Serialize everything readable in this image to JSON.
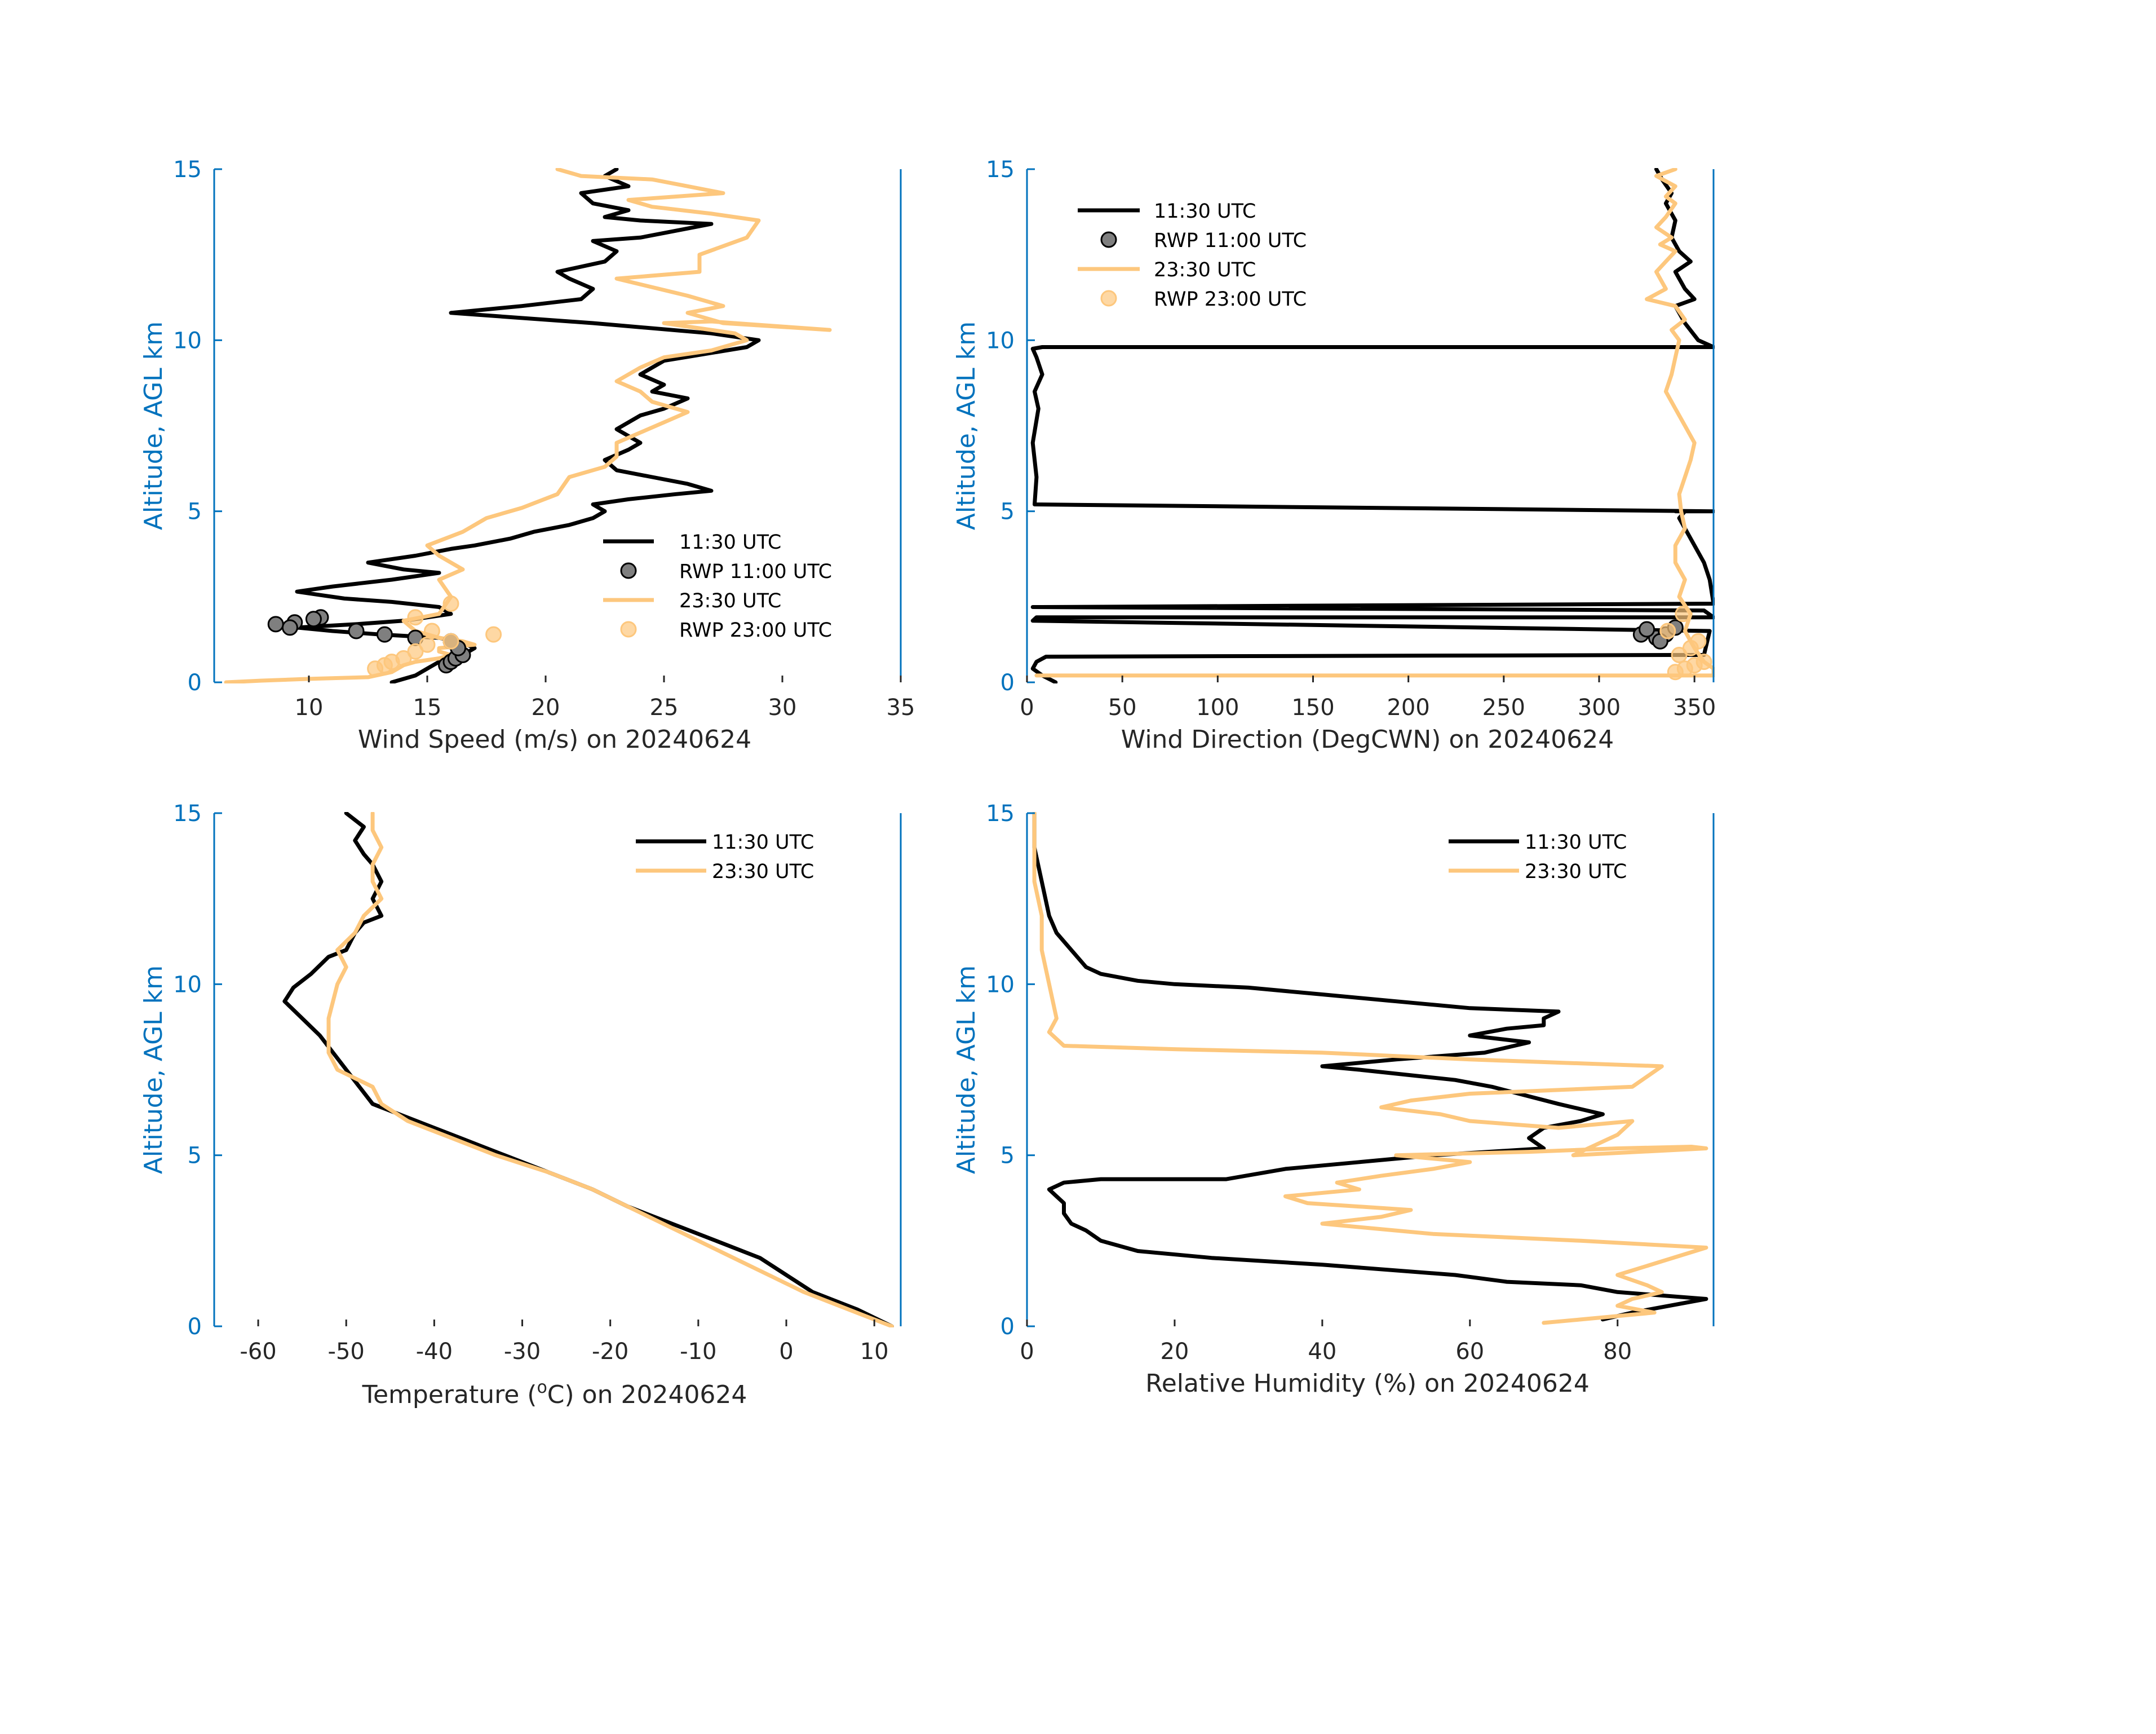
{
  "colors": {
    "axis": "#0072BD",
    "black": "#000000",
    "orange": "#FDC77D",
    "label": "#262626",
    "marker_gray": "#7F7F7F"
  },
  "chart_data": [
    {
      "type": "line",
      "id": "wind-speed",
      "xlabel": "Wind Speed (m/s) on 20240624",
      "ylabel": "Altitude, AGL km",
      "xlim": [
        6,
        35
      ],
      "ylim": [
        0,
        15
      ],
      "xticks": [
        10,
        15,
        20,
        25,
        30,
        35
      ],
      "yticks": [
        0,
        5,
        10,
        15
      ],
      "legend": [
        "11:30 UTC",
        "RWP 11:00 UTC",
        "23:30 UTC",
        "RWP 23:00 UTC"
      ],
      "series": [
        {
          "name": "11:30 UTC",
          "kind": "line",
          "color": "black",
          "x": [
            13.5,
            14.5,
            15.0,
            15.5,
            16.5,
            17.0,
            16.5,
            15.5,
            13.0,
            11.0,
            9.5,
            12.0,
            14.0,
            16.0,
            15.5,
            13.5,
            11.5,
            10.5,
            9.5,
            11.0,
            13.5,
            15.5,
            14.0,
            12.5,
            14.5,
            16.0,
            17.0,
            18.5,
            19.5,
            21.0,
            22.0,
            22.5,
            22.0,
            23.5,
            25.5,
            27.0,
            26.0,
            24.5,
            23.0,
            22.5,
            23.5,
            24.0,
            23.0,
            24.0,
            25.0,
            26.0,
            24.5,
            25.0,
            24.0,
            25.0,
            28.5,
            29.0,
            27.0,
            22.0,
            16.0,
            19.0,
            21.5,
            22.0,
            21.0,
            20.5,
            22.5,
            23.0,
            22.0,
            24.0,
            25.5,
            27.0,
            24.0,
            22.5,
            23.5,
            22.0,
            21.5,
            23.5,
            22.5,
            23.0
          ],
          "y": [
            0.0,
            0.2,
            0.4,
            0.6,
            0.8,
            1.0,
            1.15,
            1.3,
            1.4,
            1.5,
            1.6,
            1.7,
            1.8,
            2.0,
            2.2,
            2.35,
            2.45,
            2.55,
            2.65,
            2.8,
            3.0,
            3.2,
            3.3,
            3.5,
            3.7,
            3.9,
            4.0,
            4.2,
            4.4,
            4.6,
            4.8,
            5.0,
            5.2,
            5.35,
            5.5,
            5.6,
            5.8,
            6.0,
            6.2,
            6.5,
            6.8,
            7.0,
            7.4,
            7.8,
            8.0,
            8.3,
            8.5,
            8.7,
            9.0,
            9.4,
            9.8,
            10.0,
            10.2,
            10.5,
            10.8,
            11.0,
            11.2,
            11.5,
            11.8,
            12.0,
            12.3,
            12.6,
            12.9,
            13.0,
            13.2,
            13.4,
            13.5,
            13.6,
            13.8,
            14.0,
            14.3,
            14.5,
            14.8,
            15.0
          ]
        },
        {
          "name": "RWP 11:00 UTC",
          "kind": "points",
          "color": "black",
          "x": [
            15.8,
            16.0,
            16.2,
            16.5,
            16.3,
            16.0,
            14.5,
            13.2,
            12.0,
            10.5,
            10.2,
            9.4,
            9.2,
            8.6
          ],
          "y": [
            0.5,
            0.6,
            0.7,
            0.8,
            1.0,
            1.2,
            1.3,
            1.4,
            1.5,
            1.9,
            1.85,
            1.75,
            1.6,
            1.7
          ]
        },
        {
          "name": "23:30 UTC",
          "kind": "line",
          "color": "orange",
          "x": [
            6.5,
            8.0,
            10.0,
            12.5,
            13.5,
            14.0,
            14.5,
            15.5,
            16.0,
            15.5,
            15.5,
            17.0,
            16.5,
            15.5,
            14.5,
            14.0,
            15.5,
            16.0,
            15.5,
            16.5,
            15.5,
            15.0,
            16.5,
            17.5,
            19.0,
            20.5,
            21.0,
            22.5,
            23.0,
            23.0,
            24.0,
            25.0,
            26.0,
            24.5,
            24.0,
            23.0,
            24.0,
            25.0,
            27.0,
            28.5,
            28.0,
            26.0,
            25.0,
            27.0,
            30.0,
            32.0,
            27.5,
            26.0,
            27.5,
            26.0,
            23.0,
            26.5,
            26.5,
            28.5,
            29.0,
            27.0,
            24.5,
            23.5,
            27.5,
            26.0,
            24.5,
            21.5,
            20.5
          ],
          "y": [
            0.0,
            0.05,
            0.1,
            0.15,
            0.3,
            0.5,
            0.6,
            0.7,
            0.8,
            0.9,
            1.0,
            1.1,
            1.2,
            1.3,
            1.5,
            1.8,
            2.0,
            2.5,
            3.0,
            3.3,
            3.7,
            4.0,
            4.4,
            4.8,
            5.1,
            5.5,
            6.0,
            6.3,
            6.6,
            7.0,
            7.3,
            7.6,
            7.9,
            8.2,
            8.5,
            8.8,
            9.2,
            9.5,
            9.7,
            10.0,
            10.2,
            10.4,
            10.5,
            10.55,
            10.4,
            10.3,
            10.5,
            10.8,
            11.0,
            11.3,
            11.8,
            12.0,
            12.5,
            13.0,
            13.5,
            13.7,
            13.9,
            14.1,
            14.3,
            14.5,
            14.7,
            14.8,
            15.0
          ]
        },
        {
          "name": "RWP 23:00 UTC",
          "kind": "points",
          "color": "orange",
          "x": [
            12.8,
            13.2,
            13.5,
            14.0,
            14.5,
            15.0,
            16.0,
            17.8,
            15.2,
            14.5,
            16.0
          ],
          "y": [
            0.4,
            0.5,
            0.6,
            0.7,
            0.9,
            1.1,
            1.2,
            1.4,
            1.5,
            1.9,
            2.3
          ]
        }
      ]
    },
    {
      "type": "line",
      "id": "wind-direction",
      "xlabel": "Wind Direction (DegCWN) on 20240624",
      "ylabel": "Altitude, AGL km",
      "xlim": [
        0,
        360
      ],
      "ylim": [
        0,
        15
      ],
      "xticks": [
        0,
        50,
        100,
        150,
        200,
        250,
        300,
        350
      ],
      "yticks": [
        0,
        5,
        10,
        15
      ],
      "legend": [
        "11:30 UTC",
        "RWP 11:00 UTC",
        "23:30 UTC",
        "RWP 23:00 UTC"
      ],
      "series": [
        {
          "name": "11:30 UTC",
          "kind": "line",
          "color": "black",
          "x": [
            15,
            8,
            3,
            5,
            10,
            340,
            355,
            358,
            3,
            5,
            360,
            355,
            3,
            8,
            360,
            358,
            355,
            350,
            345,
            342,
            345,
            343,
            347,
            340,
            345,
            358,
            360,
            4,
            5,
            3,
            6,
            4,
            8,
            5,
            3,
            8,
            360,
            352,
            345,
            340,
            350,
            345,
            340,
            348,
            342,
            338,
            340,
            335,
            338,
            333,
            330
          ],
          "y": [
            0.0,
            0.2,
            0.4,
            0.6,
            0.75,
            0.8,
            0.8,
            1.5,
            1.8,
            1.9,
            1.9,
            2.1,
            2.2,
            2.2,
            2.3,
            3.0,
            3.5,
            4.0,
            4.5,
            4.8,
            5.0,
            5.0,
            5.0,
            5.0,
            5.0,
            5.0,
            5.0,
            5.2,
            6.0,
            7.0,
            8.0,
            8.5,
            9.0,
            9.5,
            9.75,
            9.8,
            9.8,
            10.0,
            10.5,
            11.0,
            11.2,
            11.5,
            12.0,
            12.3,
            12.6,
            13.0,
            13.5,
            14.0,
            14.3,
            14.7,
            15.0
          ]
        },
        {
          "name": "RWP 11:00 UTC",
          "kind": "points",
          "color": "black",
          "x": [
            330,
            335,
            322,
            325,
            340,
            332
          ],
          "y": [
            1.3,
            1.4,
            1.4,
            1.55,
            1.6,
            1.2
          ]
        },
        {
          "name": "23:30 UTC",
          "kind": "line",
          "color": "orange",
          "x": [
            5,
            360,
            360,
            355,
            350,
            345,
            348,
            342,
            345,
            340,
            340,
            345,
            343,
            342,
            345,
            348,
            350,
            345,
            340,
            335,
            338,
            340,
            342,
            338,
            345,
            340,
            325,
            335,
            330,
            335,
            340,
            332,
            338,
            330,
            335,
            340,
            335,
            340,
            330,
            340
          ],
          "y": [
            0.2,
            0.2,
            0.4,
            0.6,
            1.0,
            1.5,
            2.0,
            2.5,
            3.0,
            3.5,
            4.0,
            4.5,
            5.0,
            5.5,
            6.0,
            6.5,
            7.0,
            7.5,
            8.0,
            8.5,
            9.0,
            9.5,
            10.0,
            10.3,
            10.6,
            11.0,
            11.2,
            11.5,
            12.0,
            12.3,
            12.6,
            12.8,
            13.0,
            13.3,
            13.6,
            14.0,
            14.2,
            14.5,
            14.8,
            15.0
          ]
        },
        {
          "name": "RWP 23:00 UTC",
          "kind": "points",
          "color": "orange",
          "x": [
            340,
            345,
            350,
            355,
            342,
            348,
            352,
            336,
            344
          ],
          "y": [
            0.3,
            0.4,
            0.5,
            0.6,
            0.8,
            1.0,
            1.2,
            1.5,
            2.0
          ]
        }
      ]
    },
    {
      "type": "line",
      "id": "temperature",
      "xlabel": "Temperature (°C) on 20240624",
      "xlabel_main": "Temperature (",
      "xlabel_sup": "o",
      "xlabel_tail": "C) on 20240624",
      "ylabel": "Altitude, AGL km",
      "xlim": [
        -65,
        13
      ],
      "ylim": [
        0,
        15
      ],
      "xticks": [
        -60,
        -50,
        -40,
        -30,
        -20,
        -10,
        0,
        10
      ],
      "xtick_labels": [
        "-60",
        "-50",
        "-40",
        "-30",
        "-20",
        "-10",
        "0",
        "10"
      ],
      "yticks": [
        0,
        5,
        10,
        15
      ],
      "legend": [
        "11:30 UTC",
        "23:30 UTC"
      ],
      "series": [
        {
          "name": "11:30 UTC",
          "kind": "line",
          "color": "black",
          "x": [
            12,
            8,
            3,
            0,
            -3,
            -8,
            -13,
            -18,
            -22,
            -27,
            -32,
            -37,
            -42,
            -47,
            -50,
            -53,
            -55,
            -57,
            -56,
            -54,
            -52,
            -50,
            -49,
            -48,
            -46,
            -47,
            -46,
            -47,
            -48,
            -49,
            -48,
            -50
          ],
          "y": [
            0.0,
            0.5,
            1.0,
            1.5,
            2.0,
            2.5,
            3.0,
            3.5,
            4.0,
            4.5,
            5.0,
            5.5,
            6.0,
            6.5,
            7.5,
            8.5,
            9.0,
            9.5,
            9.9,
            10.3,
            10.8,
            11.0,
            11.5,
            11.8,
            12.0,
            12.5,
            13.0,
            13.5,
            13.8,
            14.2,
            14.6,
            15.0
          ]
        },
        {
          "name": "23:30 UTC",
          "kind": "line",
          "color": "orange",
          "x": [
            12,
            7,
            2,
            -2,
            -6,
            -10,
            -14,
            -18,
            -22,
            -27,
            -33,
            -38,
            -43,
            -46,
            -47,
            -51,
            -52,
            -52,
            -51,
            -50,
            -51,
            -49,
            -48,
            -46,
            -47,
            -47,
            -46,
            -47,
            -47
          ],
          "y": [
            0.0,
            0.5,
            1.0,
            1.5,
            2.0,
            2.5,
            3.0,
            3.5,
            4.0,
            4.5,
            5.0,
            5.5,
            6.0,
            6.5,
            7.0,
            7.5,
            8.0,
            9.0,
            10.0,
            10.5,
            11.0,
            11.5,
            12.0,
            12.5,
            13.0,
            13.5,
            14.0,
            14.5,
            15.0
          ]
        }
      ]
    },
    {
      "type": "line",
      "id": "relative-humidity",
      "xlabel": "Relative Humidity (%) on 20240624",
      "ylabel": "Altitude, AGL km",
      "xlim": [
        0,
        93
      ],
      "ylim": [
        0,
        15
      ],
      "xticks": [
        0,
        20,
        40,
        60,
        80
      ],
      "yticks": [
        0,
        5,
        10,
        15
      ],
      "legend": [
        "11:30 UTC",
        "23:30 UTC"
      ],
      "series": [
        {
          "name": "11:30 UTC",
          "kind": "line",
          "color": "black",
          "x": [
            78,
            82,
            92,
            80,
            75,
            65,
            58,
            40,
            25,
            15,
            10,
            8,
            6,
            5,
            5,
            4,
            3,
            5,
            10,
            27,
            35,
            45,
            55,
            70,
            68,
            70,
            75,
            78,
            72,
            63,
            58,
            45,
            40,
            50,
            62,
            68,
            60,
            65,
            70,
            70,
            72,
            60,
            50,
            40,
            30,
            20,
            15,
            10,
            8,
            6,
            4,
            3,
            2,
            1,
            1
          ],
          "y": [
            0.2,
            0.4,
            0.8,
            1.0,
            1.2,
            1.3,
            1.5,
            1.8,
            2.0,
            2.2,
            2.5,
            2.8,
            3.0,
            3.3,
            3.6,
            3.8,
            4.0,
            4.2,
            4.3,
            4.3,
            4.6,
            4.8,
            5.0,
            5.2,
            5.5,
            5.8,
            6.0,
            6.2,
            6.5,
            7.0,
            7.2,
            7.5,
            7.6,
            7.8,
            8.0,
            8.3,
            8.5,
            8.7,
            8.8,
            9.0,
            9.2,
            9.3,
            9.5,
            9.7,
            9.9,
            10.0,
            10.1,
            10.3,
            10.5,
            11.0,
            11.5,
            12.0,
            13.0,
            14.0,
            15.0
          ]
        },
        {
          "name": "23:30 UTC",
          "kind": "line",
          "color": "orange",
          "x": [
            70,
            75,
            85,
            80,
            82,
            86,
            84,
            80,
            92,
            75,
            55,
            45,
            40,
            48,
            52,
            38,
            35,
            45,
            42,
            48,
            55,
            60,
            50,
            68,
            80,
            90,
            92,
            74,
            80,
            82,
            72,
            66,
            60,
            56,
            48,
            52,
            60,
            82,
            86,
            60,
            40,
            20,
            5,
            3,
            4,
            3,
            2,
            2,
            1,
            1,
            1
          ],
          "y": [
            0.1,
            0.2,
            0.4,
            0.6,
            0.8,
            1.0,
            1.2,
            1.5,
            2.3,
            2.5,
            2.7,
            2.9,
            3.0,
            3.2,
            3.4,
            3.6,
            3.8,
            4.0,
            4.2,
            4.4,
            4.6,
            4.8,
            5.0,
            5.1,
            5.2,
            5.25,
            5.2,
            5.0,
            5.6,
            6.0,
            5.8,
            5.9,
            6.0,
            6.2,
            6.4,
            6.6,
            6.8,
            7.0,
            7.6,
            7.8,
            8.0,
            8.1,
            8.2,
            8.6,
            9.0,
            10.0,
            11.0,
            12.0,
            13.0,
            14.0,
            15.0
          ]
        }
      ]
    }
  ]
}
